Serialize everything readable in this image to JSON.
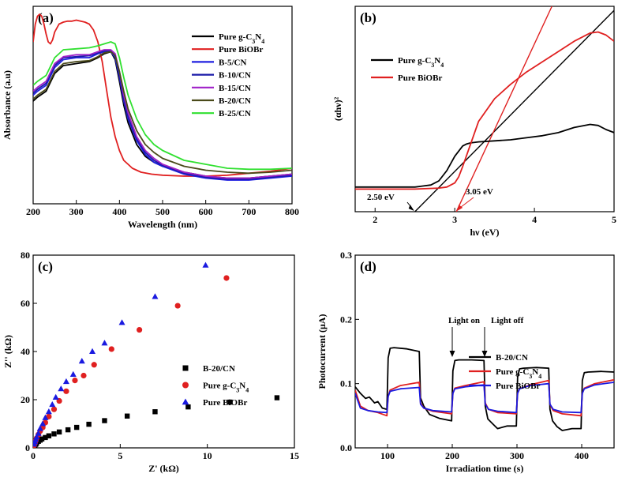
{
  "chart_data": [
    {
      "panel_label": "(a)",
      "type": "line",
      "xlabel": "Wavelength (nm)",
      "ylabel": "Absorbance (a.u)",
      "xlim": [
        200,
        800
      ],
      "ylim": [
        0,
        1.0
      ],
      "xticks": [
        200,
        300,
        400,
        500,
        600,
        700,
        800
      ],
      "series": [
        {
          "name": "Pure g-C3N4",
          "color": "#000000",
          "x": [
            200,
            210,
            230,
            250,
            270,
            300,
            330,
            350,
            365,
            380,
            390,
            400,
            410,
            420,
            440,
            460,
            480,
            500,
            550,
            600,
            650,
            700,
            750,
            800
          ],
          "y": [
            0.52,
            0.54,
            0.57,
            0.66,
            0.7,
            0.71,
            0.72,
            0.74,
            0.76,
            0.77,
            0.73,
            0.62,
            0.5,
            0.41,
            0.3,
            0.24,
            0.21,
            0.19,
            0.16,
            0.14,
            0.13,
            0.13,
            0.14,
            0.15
          ]
        },
        {
          "name": "Pure BiOBr",
          "color": "#e02020",
          "x": [
            200,
            205,
            210,
            215,
            220,
            225,
            230,
            235,
            240,
            245,
            250,
            260,
            270,
            280,
            290,
            300,
            310,
            320,
            330,
            340,
            350,
            360,
            370,
            380,
            390,
            400,
            410,
            420,
            430,
            450,
            475,
            500,
            550,
            600,
            650,
            700,
            750,
            800
          ],
          "y": [
            0.82,
            0.91,
            0.95,
            0.96,
            0.95,
            0.91,
            0.86,
            0.82,
            0.81,
            0.83,
            0.87,
            0.91,
            0.92,
            0.925,
            0.925,
            0.93,
            0.925,
            0.92,
            0.91,
            0.88,
            0.82,
            0.72,
            0.58,
            0.44,
            0.34,
            0.27,
            0.22,
            0.2,
            0.18,
            0.16,
            0.15,
            0.145,
            0.14,
            0.14,
            0.145,
            0.155,
            0.165,
            0.18
          ]
        },
        {
          "name": "B-5/CN",
          "color": "#2020e0",
          "x": [
            200,
            210,
            230,
            250,
            270,
            300,
            330,
            350,
            365,
            380,
            390,
            400,
            410,
            420,
            440,
            460,
            480,
            500,
            550,
            600,
            650,
            700,
            750,
            800
          ],
          "y": [
            0.55,
            0.57,
            0.6,
            0.69,
            0.73,
            0.74,
            0.74,
            0.76,
            0.77,
            0.77,
            0.74,
            0.64,
            0.52,
            0.43,
            0.32,
            0.25,
            0.21,
            0.19,
            0.15,
            0.13,
            0.12,
            0.12,
            0.13,
            0.14
          ]
        },
        {
          "name": "B-10/CN",
          "color": "#1a1aa8",
          "x": [
            200,
            210,
            230,
            250,
            270,
            300,
            330,
            350,
            365,
            380,
            390,
            400,
            410,
            420,
            440,
            460,
            480,
            500,
            550,
            600,
            650,
            700,
            750,
            800
          ],
          "y": [
            0.56,
            0.58,
            0.61,
            0.7,
            0.74,
            0.745,
            0.75,
            0.765,
            0.775,
            0.775,
            0.75,
            0.65,
            0.53,
            0.44,
            0.33,
            0.26,
            0.22,
            0.195,
            0.155,
            0.135,
            0.125,
            0.125,
            0.135,
            0.145
          ]
        },
        {
          "name": "B-15/CN",
          "color": "#a020c8",
          "x": [
            200,
            210,
            230,
            250,
            270,
            300,
            330,
            350,
            365,
            380,
            390,
            400,
            410,
            420,
            440,
            460,
            480,
            500,
            550,
            600,
            650,
            700,
            750,
            800
          ],
          "y": [
            0.57,
            0.59,
            0.62,
            0.71,
            0.745,
            0.755,
            0.755,
            0.77,
            0.78,
            0.78,
            0.76,
            0.67,
            0.55,
            0.46,
            0.34,
            0.27,
            0.23,
            0.2,
            0.16,
            0.14,
            0.13,
            0.13,
            0.14,
            0.15
          ]
        },
        {
          "name": "B-20/CN",
          "color": "#4a4a1a",
          "x": [
            200,
            210,
            230,
            250,
            270,
            300,
            330,
            350,
            365,
            380,
            390,
            400,
            410,
            420,
            440,
            460,
            480,
            500,
            550,
            600,
            650,
            700,
            750,
            800
          ],
          "y": [
            0.53,
            0.55,
            0.58,
            0.67,
            0.71,
            0.72,
            0.725,
            0.745,
            0.765,
            0.77,
            0.75,
            0.67,
            0.57,
            0.48,
            0.37,
            0.3,
            0.26,
            0.23,
            0.19,
            0.17,
            0.16,
            0.155,
            0.16,
            0.17
          ]
        },
        {
          "name": "B-25/CN",
          "color": "#30e030",
          "x": [
            200,
            210,
            230,
            250,
            270,
            300,
            330,
            350,
            365,
            380,
            390,
            400,
            410,
            420,
            440,
            460,
            480,
            500,
            550,
            600,
            650,
            700,
            750,
            800
          ],
          "y": [
            0.6,
            0.62,
            0.65,
            0.74,
            0.78,
            0.785,
            0.79,
            0.8,
            0.81,
            0.82,
            0.81,
            0.74,
            0.64,
            0.55,
            0.43,
            0.35,
            0.3,
            0.27,
            0.22,
            0.2,
            0.18,
            0.175,
            0.175,
            0.18
          ]
        }
      ],
      "legend": [
        "Pure g-C3N4",
        "Pure BiOBr",
        "B-5/CN",
        "B-10/CN",
        "B-15/CN",
        "B-20/CN",
        "B-25/CN"
      ],
      "legend_position": "top-right"
    },
    {
      "panel_label": "(b)",
      "type": "line",
      "xlabel": "hν (eV)",
      "ylabel": "(αhν)²",
      "xlim": [
        1.75,
        5.0
      ],
      "ylim": [
        0,
        1.0
      ],
      "xticks": [
        2,
        3,
        4,
        5
      ],
      "series": [
        {
          "name": "Pure g-C3N4",
          "color": "#000000",
          "x": [
            1.75,
            2.5,
            2.6,
            2.7,
            2.8,
            2.9,
            3.0,
            3.1,
            3.15,
            3.2,
            3.3,
            3.5,
            3.7,
            3.9,
            4.1,
            4.3,
            4.5,
            4.7,
            4.8,
            4.9,
            5.0
          ],
          "y": [
            0.12,
            0.12,
            0.125,
            0.13,
            0.15,
            0.2,
            0.27,
            0.32,
            0.33,
            0.335,
            0.34,
            0.345,
            0.35,
            0.36,
            0.37,
            0.385,
            0.41,
            0.425,
            0.42,
            0.4,
            0.385
          ]
        },
        {
          "name": "Pure BiOBr",
          "color": "#e02020",
          "x": [
            1.75,
            2.5,
            2.8,
            2.9,
            3.0,
            3.05,
            3.1,
            3.2,
            3.3,
            3.5,
            3.7,
            3.9,
            4.1,
            4.3,
            4.5,
            4.7,
            4.8,
            4.9,
            5.0
          ],
          "y": [
            0.11,
            0.11,
            0.115,
            0.12,
            0.14,
            0.17,
            0.22,
            0.33,
            0.44,
            0.55,
            0.62,
            0.68,
            0.73,
            0.78,
            0.83,
            0.87,
            0.875,
            0.86,
            0.83
          ]
        }
      ],
      "fit_lines": [
        {
          "color": "#000000",
          "x": [
            2.5,
            5.0
          ],
          "y": [
            0.0,
            0.98
          ]
        },
        {
          "color": "#e02020",
          "x": [
            3.02,
            4.22
          ],
          "y": [
            0.0,
            1.0
          ]
        }
      ],
      "annotations": [
        "2.50 eV",
        "3.05 eV"
      ],
      "legend": [
        "Pure g-C3N4",
        "Pure BiOBr"
      ],
      "legend_position": "top-left"
    },
    {
      "panel_label": "(c)",
      "type": "scatter",
      "xlabel": "Z' (kΩ)",
      "ylabel": "Z'' (kΩ)",
      "xlim": [
        0,
        15
      ],
      "ylim": [
        0,
        80
      ],
      "xticks": [
        0,
        5,
        10,
        15
      ],
      "yticks": [
        0,
        20,
        40,
        60,
        80
      ],
      "series": [
        {
          "name": "B-20/CN",
          "color": "#000000",
          "marker": "square",
          "x": [
            0.05,
            0.1,
            0.15,
            0.2,
            0.3,
            0.4,
            0.5,
            0.7,
            0.9,
            1.2,
            1.5,
            2.0,
            2.5,
            3.2,
            4.1,
            5.4,
            7.0,
            8.9,
            11.3,
            14.0
          ],
          "y": [
            0.5,
            1.0,
            1.5,
            2.0,
            2.7,
            3.2,
            3.7,
            4.3,
            5.0,
            5.8,
            6.6,
            7.5,
            8.5,
            9.8,
            11.3,
            13.2,
            15.0,
            17.0,
            19.0,
            20.8
          ]
        },
        {
          "name": "Pure g-C3N4",
          "color": "#e02020",
          "marker": "circle",
          "x": [
            0.05,
            0.1,
            0.15,
            0.2,
            0.3,
            0.4,
            0.55,
            0.7,
            0.9,
            1.2,
            1.5,
            1.9,
            2.4,
            2.9,
            3.5,
            4.5,
            6.1,
            8.3,
            11.1
          ],
          "y": [
            1.0,
            2.0,
            3.0,
            4.0,
            5.5,
            7.0,
            8.5,
            10.5,
            13.0,
            16.0,
            19.5,
            23.5,
            28.0,
            30.0,
            34.5,
            41.0,
            49.0,
            59.0,
            70.5
          ]
        },
        {
          "name": "Pure BiOBr",
          "color": "#1a1ae0",
          "marker": "triangle",
          "x": [
            0.05,
            0.1,
            0.15,
            0.2,
            0.3,
            0.4,
            0.55,
            0.7,
            0.9,
            1.1,
            1.3,
            1.6,
            1.9,
            2.3,
            2.8,
            3.4,
            4.1,
            5.1,
            7.0,
            9.9
          ],
          "y": [
            1.5,
            2.5,
            3.5,
            4.5,
            6.0,
            8.0,
            10.0,
            12.5,
            15.0,
            18.0,
            21.0,
            24.5,
            27.5,
            30.5,
            36.0,
            40.0,
            43.5,
            52.0,
            62.8,
            75.8
          ]
        }
      ],
      "legend": [
        "B-20/CN",
        "Pure g-C3N4",
        "Pure BiOBr"
      ],
      "legend_position": "right"
    },
    {
      "panel_label": "(d)",
      "type": "line",
      "xlabel": "Irradiation time (s)",
      "ylabel": "Photocurrent (μA)",
      "xlim": [
        50,
        450
      ],
      "ylim": [
        0.0,
        0.3
      ],
      "xticks": [
        100,
        200,
        300,
        400
      ],
      "yticks": [
        0.0,
        0.1,
        0.2,
        0.3
      ],
      "series": [
        {
          "name": "B-20/CN",
          "color": "#000000",
          "x": [
            50,
            58,
            66,
            72,
            80,
            85,
            92,
            99,
            101,
            104,
            110,
            130,
            149,
            151,
            156,
            165,
            180,
            199,
            201,
            204,
            210,
            230,
            249,
            251,
            255,
            262,
            270,
            285,
            299,
            301,
            304,
            310,
            330,
            349,
            351,
            355,
            362,
            370,
            385,
            399,
            401,
            404,
            410,
            430,
            450
          ],
          "y": [
            0.095,
            0.085,
            0.077,
            0.079,
            0.07,
            0.072,
            0.062,
            0.06,
            0.14,
            0.155,
            0.156,
            0.154,
            0.15,
            0.078,
            0.065,
            0.052,
            0.046,
            0.042,
            0.12,
            0.136,
            0.137,
            0.137,
            0.136,
            0.065,
            0.045,
            0.038,
            0.03,
            0.034,
            0.034,
            0.11,
            0.123,
            0.124,
            0.125,
            0.124,
            0.06,
            0.042,
            0.033,
            0.027,
            0.03,
            0.03,
            0.105,
            0.117,
            0.118,
            0.119,
            0.118
          ]
        },
        {
          "name": "Pure g-C3N4",
          "color": "#e02020",
          "x": [
            50,
            58,
            70,
            85,
            99,
            101,
            104,
            120,
            149,
            151,
            156,
            170,
            199,
            201,
            204,
            220,
            249,
            251,
            256,
            270,
            299,
            301,
            304,
            320,
            349,
            351,
            356,
            370,
            399,
            401,
            404,
            420,
            450
          ],
          "y": [
            0.09,
            0.065,
            0.058,
            0.055,
            0.05,
            0.08,
            0.09,
            0.097,
            0.102,
            0.07,
            0.062,
            0.057,
            0.053,
            0.085,
            0.093,
            0.097,
            0.103,
            0.07,
            0.06,
            0.055,
            0.053,
            0.085,
            0.092,
            0.098,
            0.105,
            0.068,
            0.058,
            0.053,
            0.05,
            0.085,
            0.093,
            0.1,
            0.106
          ]
        },
        {
          "name": "Pure BiOBr",
          "color": "#1a1ae0",
          "x": [
            50,
            58,
            70,
            85,
            99,
            101,
            104,
            120,
            149,
            151,
            156,
            170,
            199,
            201,
            204,
            220,
            249,
            251,
            256,
            270,
            299,
            301,
            304,
            320,
            349,
            351,
            356,
            370,
            399,
            401,
            404,
            420,
            450
          ],
          "y": [
            0.085,
            0.062,
            0.058,
            0.056,
            0.055,
            0.08,
            0.088,
            0.092,
            0.094,
            0.068,
            0.062,
            0.058,
            0.056,
            0.085,
            0.092,
            0.095,
            0.098,
            0.068,
            0.06,
            0.057,
            0.055,
            0.085,
            0.092,
            0.097,
            0.1,
            0.068,
            0.06,
            0.056,
            0.055,
            0.085,
            0.092,
            0.098,
            0.102
          ]
        }
      ],
      "annotations": [
        "Light on",
        "Light off"
      ],
      "legend": [
        "B-20/CN",
        "Pure g-C3N4",
        "Pure BiOBr"
      ],
      "legend_position": "top-right"
    }
  ]
}
